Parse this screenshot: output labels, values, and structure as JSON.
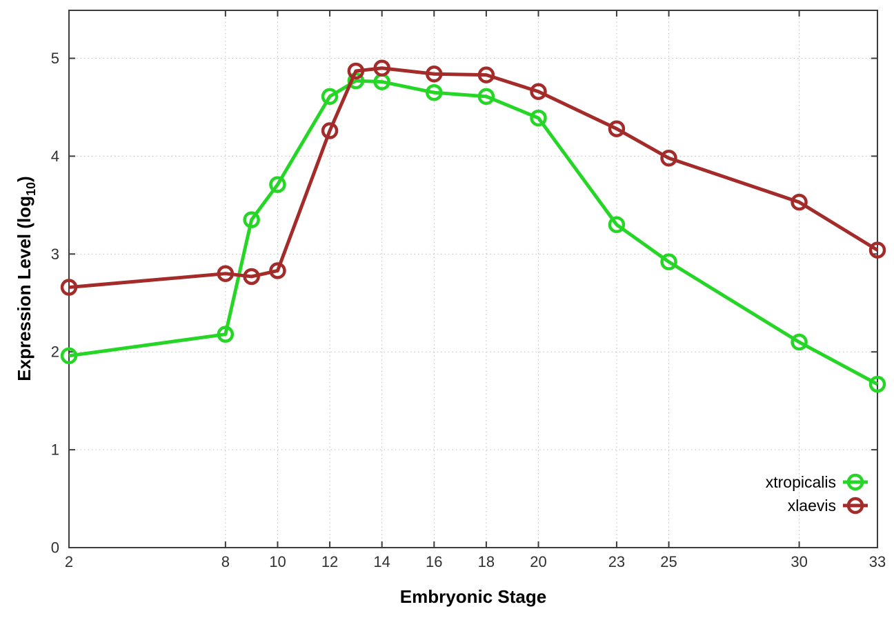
{
  "chart_data": {
    "type": "line",
    "title": "",
    "xlabel": "Embryonic Stage",
    "ylabel": "Expression Level (log10)",
    "ylabel_base": "Expression Level (log",
    "ylabel_sub": "10",
    "ylabel_close": ")",
    "x": [
      2,
      8,
      9,
      10,
      12,
      13,
      14,
      16,
      18,
      20,
      23,
      25,
      30,
      33
    ],
    "x_tick_labels": [
      "2",
      "8",
      "10",
      "12",
      "14",
      "16",
      "18",
      "20",
      "23",
      "25",
      "30",
      "33"
    ],
    "x_tick_values": [
      2,
      8,
      10,
      12,
      14,
      16,
      18,
      20,
      23,
      25,
      30,
      33
    ],
    "y_tick_labels": [
      "0",
      "1",
      "2",
      "3",
      "4",
      "5"
    ],
    "y_tick_values": [
      0,
      1,
      2,
      3,
      4,
      5
    ],
    "xlim": [
      2,
      33
    ],
    "ylim": [
      0,
      5.49
    ],
    "grid": true,
    "legend_position": "bottom-right",
    "series": [
      {
        "name": "xtropicalis",
        "color": "#26d626",
        "values": [
          1.96,
          2.18,
          3.35,
          3.71,
          4.61,
          4.77,
          4.76,
          4.65,
          4.61,
          4.39,
          3.3,
          2.92,
          2.1,
          1.67
        ]
      },
      {
        "name": "xlaevis",
        "color": "#a32c2a",
        "values": [
          2.66,
          2.8,
          2.77,
          2.83,
          4.26,
          4.87,
          4.9,
          4.84,
          4.83,
          4.66,
          4.28,
          3.98,
          3.53,
          3.04
        ]
      }
    ]
  },
  "style_colors": {
    "border": "#3c3c3c",
    "grid": "#bdbdbd",
    "tick_text": "#303030",
    "background": "#ffffff"
  }
}
